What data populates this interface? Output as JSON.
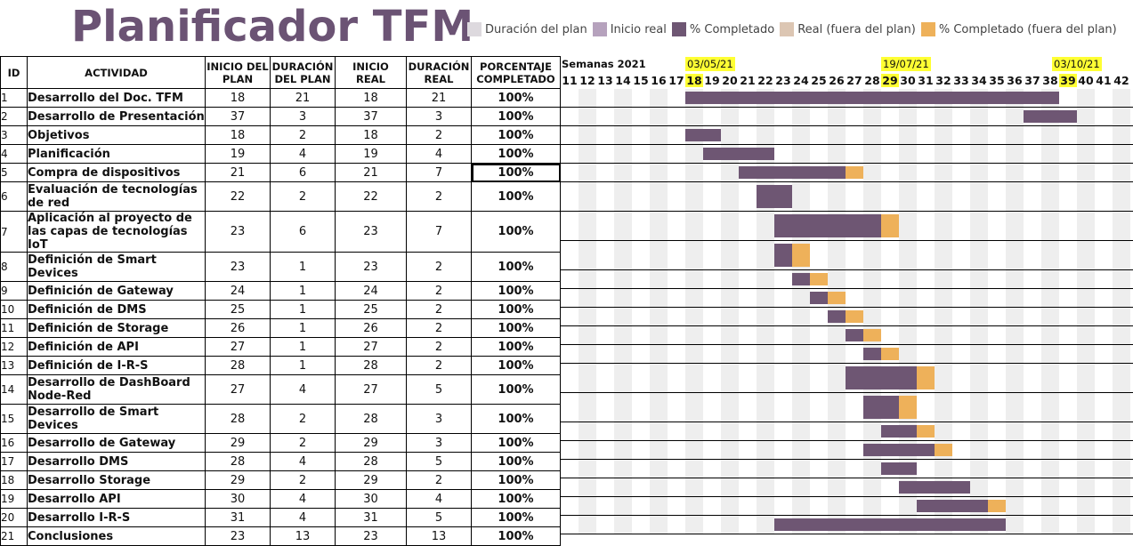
{
  "title": "Planificador TFM",
  "legend": [
    {
      "label": "Duración del plan",
      "color": "#ddd9de"
    },
    {
      "label": "Inicio real",
      "color": "#b6a2bd"
    },
    {
      "label": "% Completado",
      "color": "#6e5673"
    },
    {
      "label": "Real (fuera del plan)",
      "color": "#dcc6b3"
    },
    {
      "label": "% Completado (fuera del plan)",
      "color": "#eeb15a"
    }
  ],
  "headers": {
    "id": "ID",
    "actividad": "ACTIVIDAD",
    "inicio_plan": [
      "INICIO DEL",
      "PLAN"
    ],
    "duracion_plan": [
      "DURACIÓN",
      "DEL PLAN"
    ],
    "inicio_real": [
      "INICIO",
      "REAL"
    ],
    "duracion_real": [
      "DURACIÓN",
      "REAL"
    ],
    "porcentaje": [
      "PORCENTAJE",
      "COMPLETADO"
    ]
  },
  "weeks_caption": "Semanas 2021",
  "weeks": [
    11,
    12,
    13,
    14,
    15,
    16,
    17,
    18,
    19,
    20,
    21,
    22,
    23,
    24,
    25,
    26,
    27,
    28,
    29,
    30,
    31,
    32,
    33,
    34,
    35,
    36,
    37,
    38,
    39,
    40,
    41,
    42
  ],
  "highlighted_weeks": [
    18,
    29,
    39
  ],
  "date_labels": [
    {
      "text": "03/05/21",
      "week": 18
    },
    {
      "text": "19/07/21",
      "week": 29
    },
    {
      "text": "03/10/21",
      "week": 39
    }
  ],
  "tasks": [
    {
      "id": "1",
      "name": [
        "Desarrollo del Doc. TFM"
      ],
      "plan_start": "18",
      "plan_dur": "21",
      "real_start": "18",
      "real_dur": "21",
      "pct": "100%"
    },
    {
      "id": "2",
      "name": [
        "Desarrollo de Presentación"
      ],
      "plan_start": "37",
      "plan_dur": "3",
      "real_start": "37",
      "real_dur": "3",
      "pct": "100%"
    },
    {
      "id": "3",
      "name": [
        "Objetivos"
      ],
      "plan_start": "18",
      "plan_dur": "2",
      "real_start": "18",
      "real_dur": "2",
      "pct": "100%"
    },
    {
      "id": "4",
      "name": [
        "Planificación"
      ],
      "plan_start": "19",
      "plan_dur": "4",
      "real_start": "19",
      "real_dur": "4",
      "pct": "100%"
    },
    {
      "id": "5",
      "name": [
        "Compra de dispositivos"
      ],
      "plan_start": "21",
      "plan_dur": "6",
      "real_start": "21",
      "real_dur": "7",
      "pct": "100%"
    },
    {
      "id": "6",
      "name": [
        "Evaluación de tecnologías",
        "de red"
      ],
      "plan_start": "22",
      "plan_dur": "2",
      "real_start": "22",
      "real_dur": "2",
      "pct": "100%"
    },
    {
      "id": "7",
      "name": [
        "Aplicación al proyecto de",
        "las capas de tecnologías IoT"
      ],
      "plan_start": "23",
      "plan_dur": "6",
      "real_start": "23",
      "real_dur": "7",
      "pct": "100%"
    },
    {
      "id": "8",
      "name": [
        "Definición de Smart",
        "Devices"
      ],
      "plan_start": "23",
      "plan_dur": "1",
      "real_start": "23",
      "real_dur": "2",
      "pct": "100%"
    },
    {
      "id": "9",
      "name": [
        "Definición de Gateway"
      ],
      "plan_start": "24",
      "plan_dur": "1",
      "real_start": "24",
      "real_dur": "2",
      "pct": "100%"
    },
    {
      "id": "10",
      "name": [
        "Definición de DMS"
      ],
      "plan_start": "25",
      "plan_dur": "1",
      "real_start": "25",
      "real_dur": "2",
      "pct": "100%"
    },
    {
      "id": "11",
      "name": [
        "Definición de Storage"
      ],
      "plan_start": "26",
      "plan_dur": "1",
      "real_start": "26",
      "real_dur": "2",
      "pct": "100%"
    },
    {
      "id": "12",
      "name": [
        "Definición de API"
      ],
      "plan_start": "27",
      "plan_dur": "1",
      "real_start": "27",
      "real_dur": "2",
      "pct": "100%"
    },
    {
      "id": "13",
      "name": [
        "Definición de I-R-S"
      ],
      "plan_start": "28",
      "plan_dur": "1",
      "real_start": "28",
      "real_dur": "2",
      "pct": "100%"
    },
    {
      "id": "14",
      "name": [
        "Desarrollo de DashBoard",
        "Node-Red"
      ],
      "plan_start": "27",
      "plan_dur": "4",
      "real_start": "27",
      "real_dur": "5",
      "pct": "100%"
    },
    {
      "id": "15",
      "name": [
        "Desarrollo de Smart",
        "Devices"
      ],
      "plan_start": "28",
      "plan_dur": "2",
      "real_start": "28",
      "real_dur": "3",
      "pct": "100%"
    },
    {
      "id": "16",
      "name": [
        "Desarrollo de Gateway"
      ],
      "plan_start": "29",
      "plan_dur": "2",
      "real_start": "29",
      "real_dur": "3",
      "pct": "100%"
    },
    {
      "id": "17",
      "name": [
        "Desarrollo DMS"
      ],
      "plan_start": "28",
      "plan_dur": "4",
      "real_start": "28",
      "real_dur": "5",
      "pct": "100%"
    },
    {
      "id": "18",
      "name": [
        "Desarrollo Storage"
      ],
      "plan_start": "29",
      "plan_dur": "2",
      "real_start": "29",
      "real_dur": "2",
      "pct": "100%"
    },
    {
      "id": "19",
      "name": [
        "Desarrollo API"
      ],
      "plan_start": "30",
      "plan_dur": "4",
      "real_start": "30",
      "real_dur": "4",
      "pct": "100%"
    },
    {
      "id": "20",
      "name": [
        "Desarrollo I-R-S"
      ],
      "plan_start": "31",
      "plan_dur": "4",
      "real_start": "31",
      "real_dur": "5",
      "pct": "100%"
    },
    {
      "id": "21",
      "name": [
        "Conclusiones"
      ],
      "plan_start": "23",
      "plan_dur": "13",
      "real_start": "23",
      "real_dur": "13",
      "pct": "100%"
    }
  ]
}
